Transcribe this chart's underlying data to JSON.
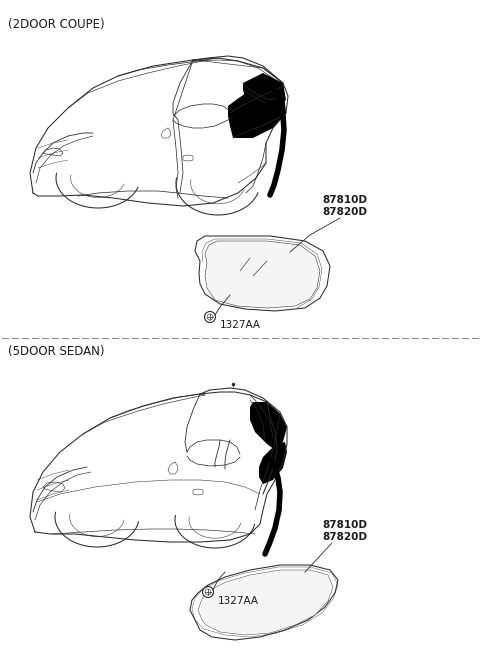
{
  "bg_color": "#ffffff",
  "title_2door": "(2DOOR COUPE)",
  "title_5door": "(5DOOR SEDAN)",
  "label_87810D": "87810D",
  "label_87820D": "87820D",
  "label_1327AA": "1327AA",
  "text_color": "#1a1a1a",
  "line_color": "#2a2a2a",
  "div_color": "#888888",
  "font_size_title": 8.5,
  "font_size_label": 7.5,
  "lw_car": 0.75,
  "lw_glass": 0.9,
  "lw_div": 0.7
}
